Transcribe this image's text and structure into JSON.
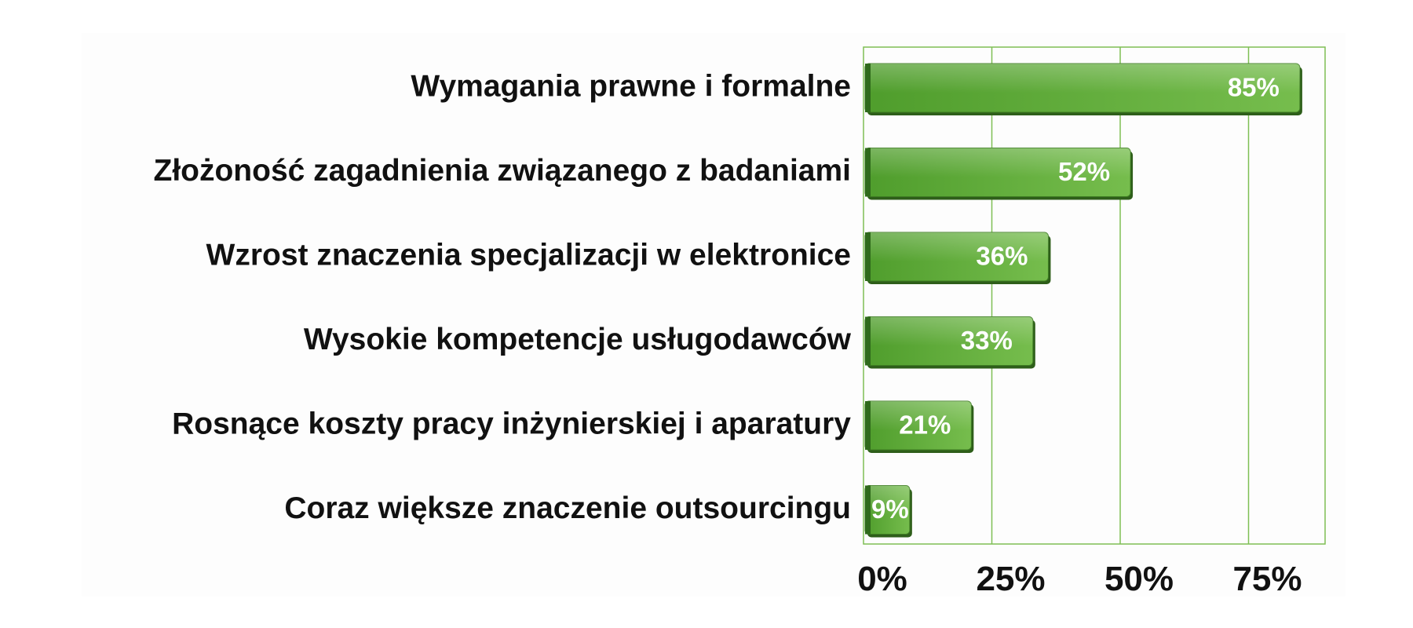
{
  "chart_data": {
    "type": "bar",
    "orientation": "horizontal",
    "categories": [
      "Wymagania prawne i formalne",
      "Złożoność zagadnienia związanego z badaniami",
      "Wzrost znaczenia specjalizacji w elektronice",
      "Wysokie kompetencje usługodawców",
      "Rosnące koszty pracy inżynierskiej i aparatury",
      "Coraz większe znaczenie outsourcingu"
    ],
    "values": [
      85,
      52,
      36,
      33,
      21,
      9
    ],
    "data_labels": [
      "85%",
      "52%",
      "36%",
      "33%",
      "21%",
      "9%"
    ],
    "x_ticks": [
      0,
      25,
      50,
      75
    ],
    "x_tick_labels": [
      "0%",
      "25%",
      "50%",
      "75%"
    ],
    "xlim": [
      0,
      90
    ],
    "grid": "vertical",
    "bar_color": "#5aa832",
    "grid_color": "#7fbf55"
  }
}
